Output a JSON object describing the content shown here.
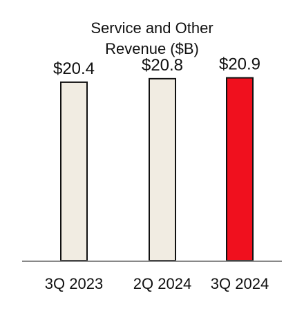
{
  "chart_data": {
    "type": "bar",
    "title_lines": [
      "Service and Other",
      "Revenue ($B)"
    ],
    "categories": [
      "3Q 2023",
      "2Q 2024",
      "3Q 2024"
    ],
    "values": [
      20.4,
      20.8,
      20.9
    ],
    "value_labels": [
      "$20.4",
      "$20.8",
      "$20.9"
    ],
    "bar_colors": [
      "#f1ece2",
      "#f1ece2",
      "#f0101e"
    ],
    "bar_outline_color": "#111111",
    "baseline_color": "#888888",
    "ylim": [
      0,
      21.5
    ],
    "grid": false,
    "legend": "none",
    "xlabel": "",
    "ylabel": ""
  }
}
